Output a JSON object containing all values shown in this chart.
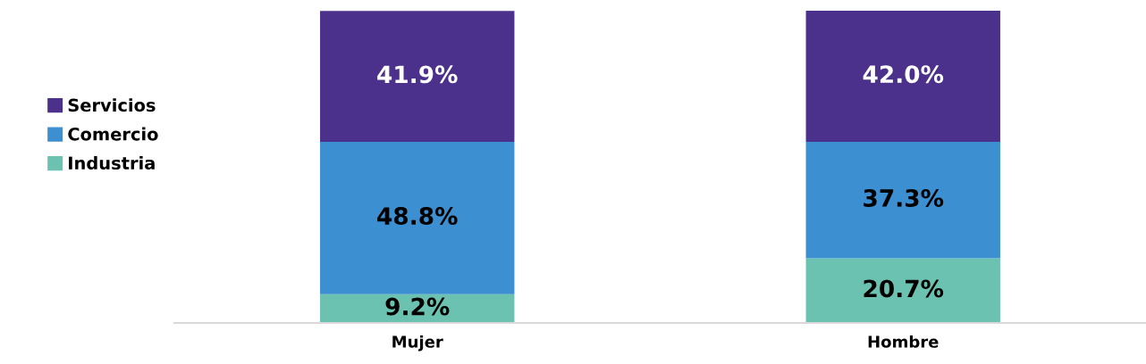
{
  "chart_data": {
    "type": "bar",
    "stacked": true,
    "categories": [
      "Mujer",
      "Hombre"
    ],
    "series": [
      {
        "name": "Industria",
        "color": "#6bc2b0",
        "values": [
          9.2,
          20.7
        ],
        "value_labels": [
          "9.2%",
          "20.7%"
        ]
      },
      {
        "name": "Comercio",
        "color": "#3c8fd0",
        "values": [
          48.8,
          37.3
        ],
        "value_labels": [
          "48.8%",
          "37.3%"
        ]
      },
      {
        "name": "Servicios",
        "color": "#4b318b",
        "values": [
          41.9,
          42.0
        ],
        "value_labels": [
          "41.9%",
          "42.0%"
        ]
      }
    ],
    "legend": "left",
    "grid": false
  }
}
